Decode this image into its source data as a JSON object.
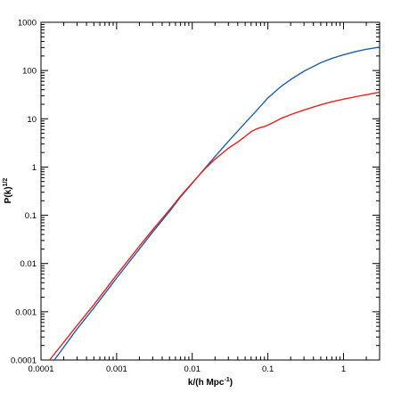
{
  "chart_data": {
    "type": "line",
    "title": "",
    "xlabel": "k/(h Mpc",
    "xlabel_sup": "-1",
    "xlabel_close": ")",
    "ylabel": "P(k)",
    "ylabel_sup": "1/2",
    "xscale": "log",
    "yscale": "log",
    "xlim": [
      0.0001,
      3.0
    ],
    "ylim": [
      0.0001,
      1000
    ],
    "grid": false,
    "x_ticks": [
      {
        "value": 0.0001,
        "label": "0.0001"
      },
      {
        "value": 0.001,
        "label": "0.001"
      },
      {
        "value": 0.01,
        "label": "0.01"
      },
      {
        "value": 0.1,
        "label": "0.1"
      },
      {
        "value": 1,
        "label": "1"
      }
    ],
    "y_ticks": [
      {
        "value": 0.0001,
        "label": "0.0001"
      },
      {
        "value": 0.001,
        "label": "0.001"
      },
      {
        "value": 0.01,
        "label": "0.01"
      },
      {
        "value": 0.1,
        "label": "0.1"
      },
      {
        "value": 1,
        "label": "1"
      },
      {
        "value": 10,
        "label": "10"
      },
      {
        "value": 100,
        "label": "100"
      },
      {
        "value": 1000,
        "label": "1000"
      }
    ],
    "series": [
      {
        "color": "#1f5fa8",
        "points": [
          [
            0.00015,
            0.0001
          ],
          [
            0.0003,
            0.00044
          ],
          [
            0.0005,
            0.0012
          ],
          [
            0.001,
            0.005
          ],
          [
            0.002,
            0.02
          ],
          [
            0.003,
            0.045
          ],
          [
            0.005,
            0.12
          ],
          [
            0.007,
            0.24
          ],
          [
            0.01,
            0.46
          ],
          [
            0.015,
            0.98
          ],
          [
            0.02,
            1.65
          ],
          [
            0.03,
            3.4
          ],
          [
            0.05,
            8.2
          ],
          [
            0.07,
            14.5
          ],
          [
            0.1,
            27
          ],
          [
            0.15,
            47
          ],
          [
            0.2,
            65
          ],
          [
            0.3,
            97
          ],
          [
            0.5,
            145
          ],
          [
            0.7,
            178
          ],
          [
            1.0,
            212
          ],
          [
            1.5,
            250
          ],
          [
            2.0,
            275
          ],
          [
            3.0,
            305
          ]
        ]
      },
      {
        "color": "#e8201e",
        "points": [
          [
            0.00013,
            0.0001
          ],
          [
            0.0003,
            0.00052
          ],
          [
            0.0005,
            0.0014
          ],
          [
            0.001,
            0.0058
          ],
          [
            0.002,
            0.023
          ],
          [
            0.003,
            0.05
          ],
          [
            0.005,
            0.13
          ],
          [
            0.007,
            0.25
          ],
          [
            0.01,
            0.47
          ],
          [
            0.015,
            0.95
          ],
          [
            0.02,
            1.45
          ],
          [
            0.03,
            2.45
          ],
          [
            0.04,
            3.3
          ],
          [
            0.05,
            4.3
          ],
          [
            0.06,
            5.4
          ],
          [
            0.07,
            6.1
          ],
          [
            0.08,
            6.6
          ],
          [
            0.09,
            6.9
          ],
          [
            0.1,
            7.4
          ],
          [
            0.12,
            8.5
          ],
          [
            0.15,
            10.2
          ],
          [
            0.2,
            12.2
          ],
          [
            0.3,
            15.2
          ],
          [
            0.5,
            19.5
          ],
          [
            0.7,
            22.5
          ],
          [
            1.0,
            25.5
          ],
          [
            1.5,
            29.0
          ],
          [
            2.0,
            31.5
          ],
          [
            3.0,
            35.5
          ]
        ]
      }
    ]
  }
}
